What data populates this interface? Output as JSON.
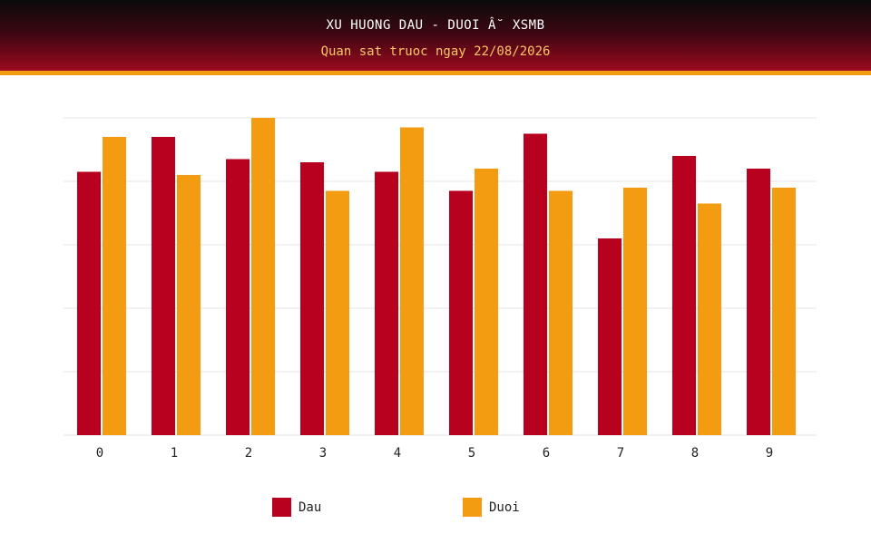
{
  "header": {
    "title": "XU HUONG DAU - DUOI Â˘ XSMB",
    "subtitle": "Quan sat truoc ngay 22/08/2026"
  },
  "colors": {
    "dau": "#b8001f",
    "duoi": "#f39c12",
    "grid": "#e6e6e6"
  },
  "chart_data": {
    "type": "bar",
    "title": "XU HUONG DAU - DUOI Â˘ XSMB",
    "subtitle": "Quan sat truoc ngay 22/08/2026",
    "xlabel": "",
    "ylabel": "",
    "categories": [
      "0",
      "1",
      "2",
      "3",
      "4",
      "5",
      "6",
      "7",
      "8",
      "9"
    ],
    "ylim": [
      0,
      100
    ],
    "grid": true,
    "legend_position": "bottom",
    "series": [
      {
        "name": "Dau",
        "color": "#b8001f",
        "values": [
          83,
          94,
          87,
          86,
          83,
          77,
          95,
          62,
          88,
          84
        ]
      },
      {
        "name": "Duoi",
        "color": "#f39c12",
        "values": [
          94,
          82,
          100,
          77,
          97,
          84,
          77,
          78,
          73,
          78
        ]
      }
    ]
  },
  "legend": {
    "items": [
      {
        "label": "Dau",
        "color": "#b8001f"
      },
      {
        "label": "Duoi",
        "color": "#f39c12"
      }
    ]
  }
}
